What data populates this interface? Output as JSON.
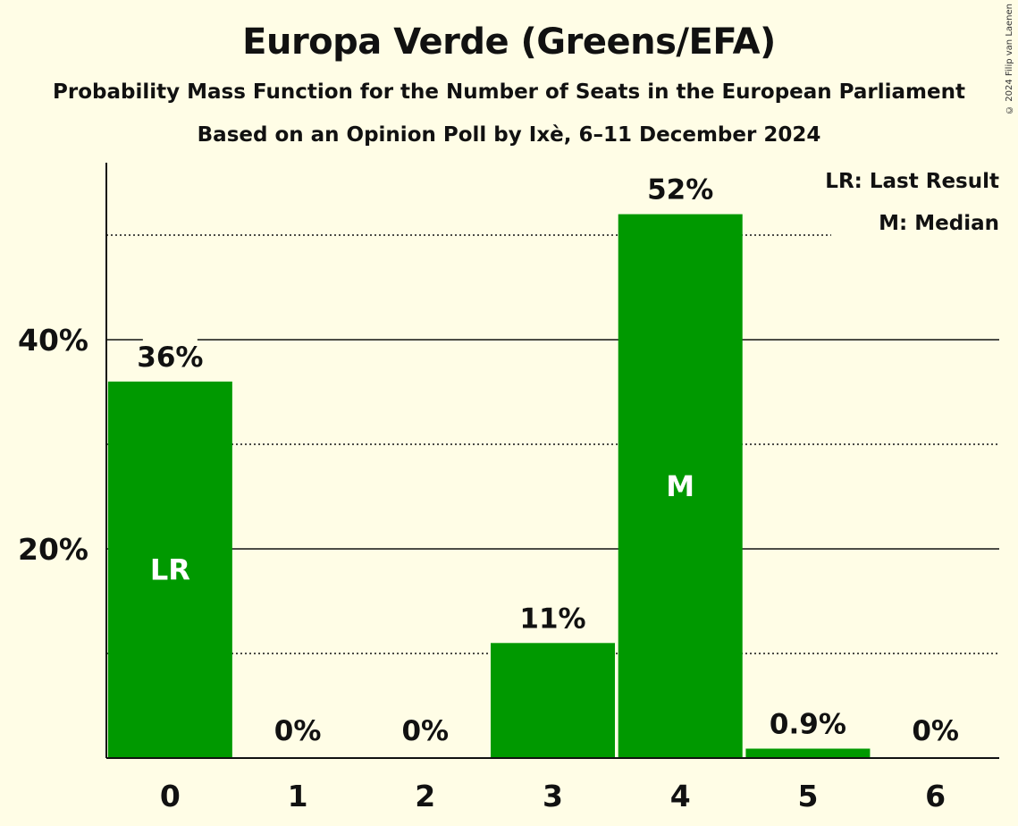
{
  "copyright": "© 2024 Filip van Laenen",
  "chart_data": {
    "type": "bar",
    "title": "Europa Verde (Greens/EFA)",
    "subtitle": "Probability Mass Function for the Number of Seats in the European Parliament",
    "subtitle2": "Based on an Opinion Poll by Ixè, 6–11 December 2024",
    "categories": [
      "0",
      "1",
      "2",
      "3",
      "4",
      "5",
      "6"
    ],
    "values": [
      36,
      0,
      0,
      11,
      52,
      0.9,
      0
    ],
    "value_labels": [
      "36%",
      "0%",
      "0%",
      "11%",
      "52%",
      "0.9%",
      "0%"
    ],
    "bar_markers": [
      {
        "category": "0",
        "text": "LR"
      },
      {
        "category": "4",
        "text": "M"
      }
    ],
    "y_ticks": [
      20,
      40
    ],
    "y_tick_labels": [
      "20%",
      "40%"
    ],
    "y_minor_gridlines": [
      10,
      30,
      50
    ],
    "ylim": [
      0,
      57
    ],
    "xlabel": "",
    "ylabel": "",
    "legend": [
      "LR: Last Result",
      "M: Median"
    ],
    "legend_position": "top-right",
    "bar_color": "#009900"
  }
}
